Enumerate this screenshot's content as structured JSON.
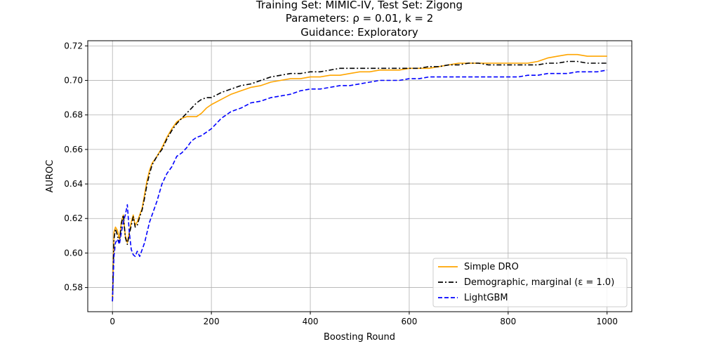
{
  "chart_data": {
    "type": "line",
    "title_lines": [
      "Training Set: MIMIC-IV, Test Set: Zigong",
      "Parameters: ρ = 0.01, k = 2",
      "Guidance: Exploratory"
    ],
    "xlabel": "Boosting Round",
    "ylabel": "AUROC",
    "xlim": [
      -50,
      1050
    ],
    "ylim": [
      0.566,
      0.723
    ],
    "xticks": [
      0,
      200,
      400,
      600,
      800,
      1000
    ],
    "yticks": [
      0.58,
      0.6,
      0.62,
      0.64,
      0.66,
      0.68,
      0.7,
      0.72
    ],
    "xtick_labels": [
      "0",
      "200",
      "400",
      "600",
      "800",
      "1000"
    ],
    "ytick_labels": [
      "0.58",
      "0.60",
      "0.62",
      "0.64",
      "0.66",
      "0.68",
      "0.70",
      "0.72"
    ],
    "grid": true,
    "legend_position": "lower-right",
    "series": [
      {
        "name": "Simple DRO",
        "color": "#ffa500",
        "dash": "solid",
        "points": [
          [
            0,
            0.572
          ],
          [
            3,
            0.612
          ],
          [
            6,
            0.615
          ],
          [
            10,
            0.613
          ],
          [
            14,
            0.608
          ],
          [
            18,
            0.618
          ],
          [
            22,
            0.622
          ],
          [
            26,
            0.61
          ],
          [
            30,
            0.606
          ],
          [
            34,
            0.612
          ],
          [
            38,
            0.618
          ],
          [
            42,
            0.622
          ],
          [
            46,
            0.616
          ],
          [
            50,
            0.618
          ],
          [
            55,
            0.622
          ],
          [
            60,
            0.626
          ],
          [
            65,
            0.634
          ],
          [
            70,
            0.642
          ],
          [
            75,
            0.648
          ],
          [
            80,
            0.652
          ],
          [
            90,
            0.656
          ],
          [
            100,
            0.661
          ],
          [
            110,
            0.667
          ],
          [
            120,
            0.672
          ],
          [
            130,
            0.676
          ],
          [
            140,
            0.678
          ],
          [
            150,
            0.679
          ],
          [
            160,
            0.679
          ],
          [
            170,
            0.679
          ],
          [
            180,
            0.681
          ],
          [
            190,
            0.684
          ],
          [
            200,
            0.686
          ],
          [
            220,
            0.689
          ],
          [
            240,
            0.692
          ],
          [
            260,
            0.694
          ],
          [
            280,
            0.696
          ],
          [
            300,
            0.697
          ],
          [
            320,
            0.699
          ],
          [
            340,
            0.7
          ],
          [
            360,
            0.701
          ],
          [
            380,
            0.701
          ],
          [
            400,
            0.702
          ],
          [
            420,
            0.702
          ],
          [
            440,
            0.703
          ],
          [
            460,
            0.703
          ],
          [
            480,
            0.704
          ],
          [
            500,
            0.705
          ],
          [
            520,
            0.705
          ],
          [
            540,
            0.706
          ],
          [
            560,
            0.706
          ],
          [
            580,
            0.706
          ],
          [
            600,
            0.707
          ],
          [
            620,
            0.707
          ],
          [
            640,
            0.707
          ],
          [
            660,
            0.708
          ],
          [
            680,
            0.709
          ],
          [
            700,
            0.71
          ],
          [
            720,
            0.71
          ],
          [
            740,
            0.71
          ],
          [
            760,
            0.71
          ],
          [
            780,
            0.71
          ],
          [
            800,
            0.71
          ],
          [
            820,
            0.71
          ],
          [
            840,
            0.71
          ],
          [
            860,
            0.711
          ],
          [
            880,
            0.713
          ],
          [
            900,
            0.714
          ],
          [
            920,
            0.715
          ],
          [
            940,
            0.715
          ],
          [
            960,
            0.714
          ],
          [
            980,
            0.714
          ],
          [
            1000,
            0.714
          ]
        ]
      },
      {
        "name": "Demographic, marginal (ε = 1.0)",
        "color": "#000000",
        "dash": "dashdot",
        "points": [
          [
            0,
            0.572
          ],
          [
            3,
            0.608
          ],
          [
            6,
            0.614
          ],
          [
            10,
            0.61
          ],
          [
            14,
            0.606
          ],
          [
            18,
            0.617
          ],
          [
            22,
            0.622
          ],
          [
            26,
            0.609
          ],
          [
            30,
            0.605
          ],
          [
            34,
            0.611
          ],
          [
            38,
            0.616
          ],
          [
            42,
            0.621
          ],
          [
            46,
            0.615
          ],
          [
            50,
            0.616
          ],
          [
            55,
            0.621
          ],
          [
            60,
            0.625
          ],
          [
            65,
            0.632
          ],
          [
            70,
            0.64
          ],
          [
            75,
            0.646
          ],
          [
            80,
            0.651
          ],
          [
            90,
            0.656
          ],
          [
            100,
            0.66
          ],
          [
            110,
            0.666
          ],
          [
            120,
            0.671
          ],
          [
            130,
            0.675
          ],
          [
            140,
            0.678
          ],
          [
            150,
            0.681
          ],
          [
            160,
            0.684
          ],
          [
            170,
            0.687
          ],
          [
            180,
            0.689
          ],
          [
            190,
            0.69
          ],
          [
            200,
            0.69
          ],
          [
            220,
            0.693
          ],
          [
            240,
            0.695
          ],
          [
            260,
            0.697
          ],
          [
            280,
            0.698
          ],
          [
            300,
            0.7
          ],
          [
            320,
            0.702
          ],
          [
            340,
            0.703
          ],
          [
            360,
            0.704
          ],
          [
            380,
            0.704
          ],
          [
            400,
            0.705
          ],
          [
            420,
            0.705
          ],
          [
            440,
            0.706
          ],
          [
            460,
            0.707
          ],
          [
            480,
            0.707
          ],
          [
            500,
            0.707
          ],
          [
            520,
            0.707
          ],
          [
            540,
            0.707
          ],
          [
            560,
            0.707
          ],
          [
            580,
            0.707
          ],
          [
            600,
            0.707
          ],
          [
            620,
            0.707
          ],
          [
            640,
            0.708
          ],
          [
            660,
            0.708
          ],
          [
            680,
            0.709
          ],
          [
            700,
            0.709
          ],
          [
            720,
            0.71
          ],
          [
            740,
            0.71
          ],
          [
            760,
            0.709
          ],
          [
            780,
            0.709
          ],
          [
            800,
            0.709
          ],
          [
            820,
            0.709
          ],
          [
            840,
            0.709
          ],
          [
            860,
            0.709
          ],
          [
            880,
            0.71
          ],
          [
            900,
            0.71
          ],
          [
            920,
            0.711
          ],
          [
            940,
            0.711
          ],
          [
            960,
            0.71
          ],
          [
            980,
            0.71
          ],
          [
            1000,
            0.71
          ]
        ]
      },
      {
        "name": "LightGBM",
        "color": "#0000ff",
        "dash": "dashed",
        "points": [
          [
            0,
            0.572
          ],
          [
            3,
            0.598
          ],
          [
            6,
            0.606
          ],
          [
            10,
            0.608
          ],
          [
            14,
            0.605
          ],
          [
            18,
            0.612
          ],
          [
            22,
            0.618
          ],
          [
            26,
            0.622
          ],
          [
            30,
            0.628
          ],
          [
            34,
            0.612
          ],
          [
            38,
            0.602
          ],
          [
            42,
            0.599
          ],
          [
            46,
            0.598
          ],
          [
            50,
            0.601
          ],
          [
            55,
            0.598
          ],
          [
            60,
            0.602
          ],
          [
            65,
            0.606
          ],
          [
            70,
            0.612
          ],
          [
            75,
            0.618
          ],
          [
            80,
            0.622
          ],
          [
            90,
            0.63
          ],
          [
            100,
            0.64
          ],
          [
            110,
            0.646
          ],
          [
            120,
            0.65
          ],
          [
            130,
            0.656
          ],
          [
            140,
            0.658
          ],
          [
            150,
            0.661
          ],
          [
            160,
            0.665
          ],
          [
            170,
            0.667
          ],
          [
            180,
            0.668
          ],
          [
            190,
            0.67
          ],
          [
            200,
            0.672
          ],
          [
            220,
            0.678
          ],
          [
            240,
            0.682
          ],
          [
            260,
            0.684
          ],
          [
            280,
            0.687
          ],
          [
            300,
            0.688
          ],
          [
            320,
            0.69
          ],
          [
            340,
            0.691
          ],
          [
            360,
            0.692
          ],
          [
            380,
            0.694
          ],
          [
            400,
            0.695
          ],
          [
            420,
            0.695
          ],
          [
            440,
            0.696
          ],
          [
            460,
            0.697
          ],
          [
            480,
            0.697
          ],
          [
            500,
            0.698
          ],
          [
            520,
            0.699
          ],
          [
            540,
            0.7
          ],
          [
            560,
            0.7
          ],
          [
            580,
            0.7
          ],
          [
            600,
            0.701
          ],
          [
            620,
            0.701
          ],
          [
            640,
            0.702
          ],
          [
            660,
            0.702
          ],
          [
            680,
            0.702
          ],
          [
            700,
            0.702
          ],
          [
            720,
            0.702
          ],
          [
            740,
            0.702
          ],
          [
            760,
            0.702
          ],
          [
            780,
            0.702
          ],
          [
            800,
            0.702
          ],
          [
            820,
            0.702
          ],
          [
            840,
            0.703
          ],
          [
            860,
            0.703
          ],
          [
            880,
            0.704
          ],
          [
            900,
            0.704
          ],
          [
            920,
            0.704
          ],
          [
            940,
            0.705
          ],
          [
            960,
            0.705
          ],
          [
            980,
            0.705
          ],
          [
            1000,
            0.706
          ]
        ]
      }
    ]
  }
}
